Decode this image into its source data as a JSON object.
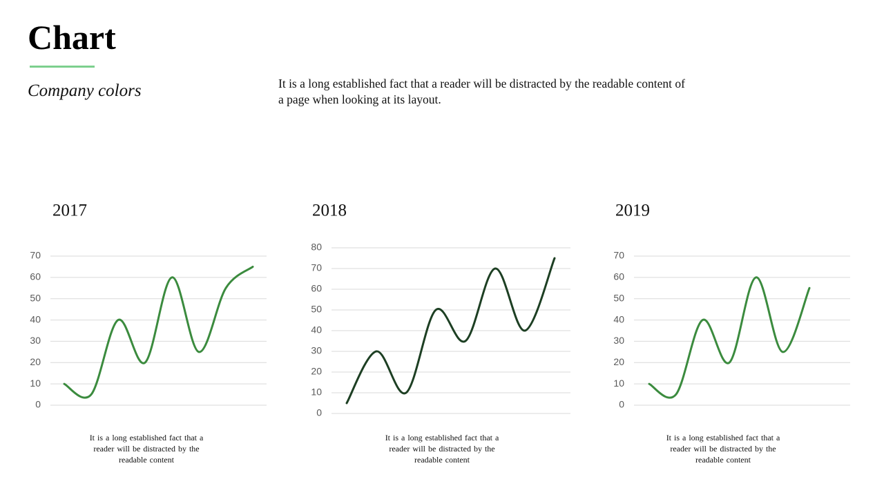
{
  "header": {
    "title": "Chart",
    "subtitle": "Company colors",
    "description": "It is a long established fact that a reader will be distracted by the readable content of a page when looking at its layout."
  },
  "chart_data": [
    {
      "type": "line",
      "title": "2017",
      "values": [
        10,
        5,
        40,
        20,
        60,
        25,
        55,
        65
      ],
      "color": "#3b8b3e",
      "ylim": [
        0,
        70
      ],
      "yticks": [
        0,
        10,
        20,
        30,
        40,
        50,
        60,
        70
      ],
      "grid": true,
      "caption": "It is a long established fact that a reader will be distracted by the readable content"
    },
    {
      "type": "line",
      "title": "2018",
      "values": [
        5,
        30,
        10,
        50,
        35,
        70,
        40,
        75
      ],
      "color": "#1d3f23",
      "ylim": [
        0,
        80
      ],
      "yticks": [
        0,
        10,
        20,
        30,
        40,
        50,
        60,
        70,
        80
      ],
      "grid": true,
      "caption": "It is a long established fact that a reader will be distracted by the readable content"
    },
    {
      "type": "line",
      "title": "2019",
      "values": [
        10,
        5,
        40,
        20,
        60,
        25,
        55
      ],
      "color": "#3b8b3e",
      "ylim": [
        0,
        70
      ],
      "yticks": [
        0,
        10,
        20,
        30,
        40,
        50,
        60,
        70
      ],
      "grid": true,
      "caption": "It is a long established fact that a reader will be distracted by the readable content"
    }
  ]
}
